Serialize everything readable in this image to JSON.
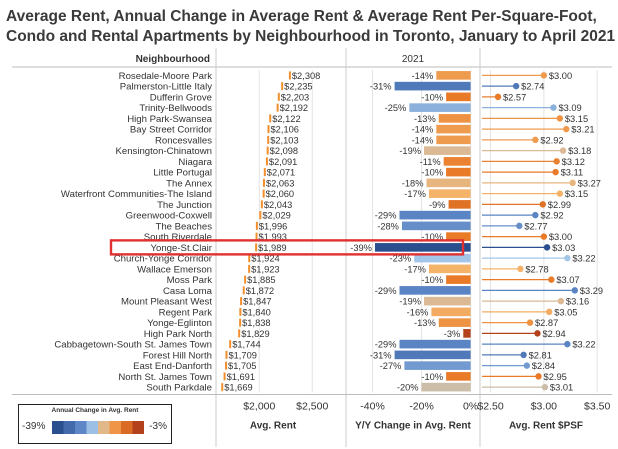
{
  "title": {
    "line1": "Average Rent, Annual Change in Average Rent & Average Rent Per-Square-Foot,",
    "line2": "Condo and Rental Apartments by Neighbourhood in Toronto, January to April 2021"
  },
  "colors": {
    "rent_bar": "#f28e2b",
    "highlight": "#e03030",
    "dark_blue": "#2a4f8f",
    "mid_blue": "#5a84c4",
    "light_blue": "#a3c6e8",
    "light_orange": "#f5b36a",
    "mid_orange": "#e87a28",
    "dark_red": "#b3411c"
  },
  "chart_data": {
    "type": "bar",
    "header": {
      "row_label": "Neighbourhood",
      "column_label": "2021"
    },
    "highlighted_category": "Yonge-St.Clair",
    "categories": [
      "Rosedale-Moore Park",
      "Palmerston-Little Italy",
      "Dufferin Grove",
      "Trinity-Bellwoods",
      "High Park-Swansea",
      "Bay Street Corridor",
      "Roncesvalles",
      "Kensington-Chinatown",
      "Niagara",
      "Little Portugal",
      "The Annex",
      "Waterfront Communities-The Island",
      "The Junction",
      "Greenwood-Coxwell",
      "The Beaches",
      "South Riverdale",
      "Yonge-St.Clair",
      "Church-Yonge Corridor",
      "Wallace Emerson",
      "Moss Park",
      "Casa Loma",
      "Mount Pleasant West",
      "Regent Park",
      "Yonge-Eglinton",
      "High Park North",
      "Cabbagetown-South St. James Town",
      "Forest Hill North",
      "East End-Danforth",
      "North St. James Town",
      "South Parkdale"
    ],
    "panels": [
      {
        "name": "Avg. Rent",
        "type": "bar",
        "axis_ticks": [
          "$2,000",
          "$2,500"
        ],
        "xlim": [
          1610,
          2800
        ],
        "tick_values": [
          2000,
          2500
        ],
        "value_labels": [
          "$2,308",
          "$2,235",
          "$2,203",
          "$2,192",
          "$2,122",
          "$2,106",
          "$2,103",
          "$2,098",
          "$2,091",
          "$2,071",
          "$2,063",
          "$2,060",
          "$2,043",
          "$2,029",
          "$1,996",
          "$1,993",
          "$1,989",
          "$1,924",
          "$1,923",
          "$1,885",
          "$1,872",
          "$1,847",
          "$1,840",
          "$1,838",
          "$1,829",
          "$1,744",
          "$1,709",
          "$1,705",
          "$1,691",
          "$1,669"
        ],
        "values": [
          2308,
          2235,
          2203,
          2192,
          2122,
          2106,
          2103,
          2098,
          2091,
          2071,
          2063,
          2060,
          2043,
          2029,
          1996,
          1993,
          1989,
          1924,
          1923,
          1885,
          1872,
          1847,
          1840,
          1838,
          1829,
          1744,
          1709,
          1705,
          1691,
          1669
        ]
      },
      {
        "name": "Y/Y Change in Avg. Rent",
        "type": "bar",
        "axis_ticks": [
          "-40%",
          "-20%",
          "0%"
        ],
        "xlim": [
          -50,
          3
        ],
        "tick_values": [
          -40,
          -20,
          0
        ],
        "value_labels": [
          "-14%",
          "-31%",
          "-10%",
          "-25%",
          "-13%",
          "-14%",
          "-14%",
          "-19%",
          "-11%",
          "-10%",
          "-18%",
          "-17%",
          "-9%",
          "-29%",
          "-28%",
          "-10%",
          "-39%",
          "-23%",
          "-17%",
          "-10%",
          "-29%",
          "-19%",
          "-16%",
          "-13%",
          "-3%",
          "-29%",
          "-31%",
          "-27%",
          "-10%",
          "-20%"
        ],
        "values": [
          -14,
          -31,
          -10,
          -25,
          -13,
          -14,
          -14,
          -19,
          -11,
          -10,
          -18,
          -17,
          -9,
          -29,
          -28,
          -10,
          -39,
          -23,
          -17,
          -10,
          -29,
          -19,
          -16,
          -13,
          -3,
          -29,
          -31,
          -27,
          -10,
          -20
        ]
      },
      {
        "name": "Avg. Rent $PSF",
        "type": "scatter",
        "axis_ticks": [
          "$2.50",
          "$3.00",
          "$3.50"
        ],
        "xlim": [
          2.42,
          3.62
        ],
        "tick_values": [
          2.5,
          3.0,
          3.5
        ],
        "value_labels": [
          "$3.00",
          "$2.74",
          "$2.57",
          "$3.09",
          "$3.15",
          "$3.21",
          "$2.92",
          "$3.18",
          "$3.12",
          "$3.11",
          "$3.27",
          "$3.15",
          "$2.99",
          "$2.92",
          "$2.77",
          "$3.00",
          "$3.03",
          "$3.22",
          "$2.78",
          "$3.07",
          "$3.29",
          "$3.16",
          "$3.05",
          "$2.87",
          "$2.94",
          "$3.22",
          "$2.81",
          "$2.84",
          "$2.95",
          "$3.01"
        ],
        "values": [
          3.0,
          2.74,
          2.57,
          3.09,
          3.15,
          3.21,
          2.92,
          3.18,
          3.12,
          3.11,
          3.27,
          3.15,
          2.99,
          2.92,
          2.77,
          3.0,
          3.03,
          3.22,
          2.78,
          3.07,
          3.29,
          3.16,
          3.05,
          2.87,
          2.94,
          3.22,
          2.81,
          2.84,
          2.95,
          3.01
        ]
      }
    ],
    "legend": {
      "title": "Annual Change in Avg. Rent",
      "min_label": "-39%",
      "max_label": "-3%",
      "range": [
        -39,
        -3
      ]
    }
  }
}
